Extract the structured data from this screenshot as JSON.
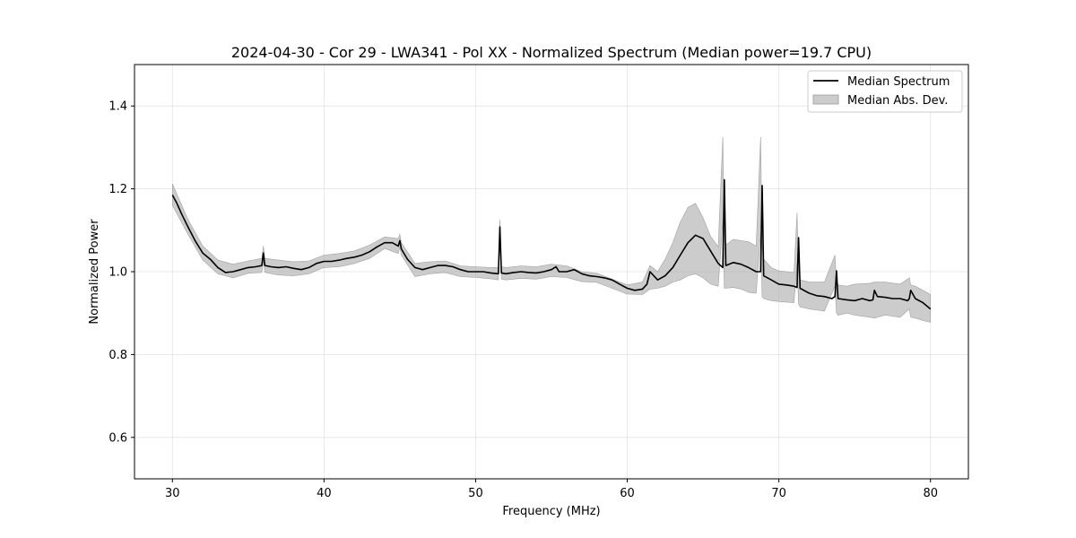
{
  "chart_data": {
    "type": "line",
    "title": "2024-04-30 - Cor 29 - LWA341 - Pol XX - Normalized Spectrum (Median power=19.7 CPU)",
    "xlabel": "Frequency (MHz)",
    "ylabel": "Normalized Power",
    "xlim": [
      27.5,
      82.5
    ],
    "ylim": [
      0.5,
      1.5
    ],
    "xticks": [
      30,
      40,
      50,
      60,
      70,
      80
    ],
    "xtick_labels": [
      "30",
      "40",
      "50",
      "60",
      "70",
      "80"
    ],
    "yticks": [
      0.6,
      0.8,
      1.0,
      1.2,
      1.4
    ],
    "ytick_labels": [
      "0.6",
      "0.8",
      "1.0",
      "1.2",
      "1.4"
    ],
    "grid": true,
    "legend_position": "top-right",
    "series": [
      {
        "name": "Median Spectrum",
        "color": "#000000",
        "x": [
          30.0,
          30.3,
          30.6,
          31.0,
          31.5,
          32.0,
          32.5,
          33.0,
          33.5,
          34.0,
          34.5,
          35.0,
          35.5,
          35.9,
          36.0,
          36.1,
          36.5,
          37.0,
          37.5,
          38.0,
          38.5,
          39.0,
          39.5,
          40.0,
          40.5,
          41.0,
          41.5,
          42.0,
          42.5,
          43.0,
          43.5,
          44.0,
          44.5,
          44.9,
          45.0,
          45.1,
          45.5,
          46.0,
          46.5,
          47.0,
          47.5,
          48.0,
          48.5,
          49.0,
          49.5,
          50.0,
          50.5,
          51.0,
          51.5,
          51.6,
          51.7,
          52.0,
          52.5,
          53.0,
          53.5,
          54.0,
          54.5,
          55.0,
          55.3,
          55.5,
          56.0,
          56.5,
          57.0,
          57.5,
          58.0,
          58.5,
          59.0,
          59.5,
          60.0,
          60.5,
          61.0,
          61.3,
          61.5,
          62.0,
          62.5,
          63.0,
          63.5,
          64.0,
          64.5,
          65.0,
          65.5,
          66.0,
          66.3,
          66.4,
          66.5,
          67.0,
          67.5,
          68.0,
          68.5,
          68.8,
          68.9,
          69.0,
          69.5,
          70.0,
          70.5,
          71.0,
          71.2,
          71.3,
          71.4,
          72.0,
          72.5,
          73.0,
          73.5,
          73.7,
          73.8,
          73.9,
          74.5,
          75.0,
          75.5,
          76.0,
          76.2,
          76.3,
          76.5,
          77.0,
          77.5,
          78.0,
          78.5,
          78.6,
          78.7,
          79.0,
          79.5,
          80.0
        ],
        "y": [
          1.185,
          1.165,
          1.14,
          1.11,
          1.075,
          1.045,
          1.03,
          1.01,
          0.998,
          1.0,
          1.005,
          1.01,
          1.012,
          1.015,
          1.045,
          1.015,
          1.012,
          1.01,
          1.012,
          1.008,
          1.005,
          1.01,
          1.02,
          1.025,
          1.025,
          1.028,
          1.032,
          1.035,
          1.04,
          1.048,
          1.06,
          1.07,
          1.07,
          1.062,
          1.075,
          1.055,
          1.03,
          1.01,
          1.005,
          1.01,
          1.015,
          1.015,
          1.012,
          1.005,
          1.0,
          1.0,
          1.0,
          0.997,
          0.995,
          1.108,
          0.997,
          0.995,
          0.998,
          1.0,
          0.998,
          0.997,
          1.0,
          1.005,
          1.012,
          1.0,
          1.0,
          1.005,
          0.995,
          0.99,
          0.988,
          0.985,
          0.98,
          0.97,
          0.96,
          0.955,
          0.958,
          0.97,
          1.0,
          0.98,
          0.99,
          1.01,
          1.04,
          1.07,
          1.088,
          1.08,
          1.05,
          1.02,
          1.01,
          1.222,
          1.015,
          1.022,
          1.018,
          1.01,
          1.0,
          1.0,
          1.208,
          0.99,
          0.98,
          0.97,
          0.968,
          0.965,
          0.962,
          1.082,
          0.96,
          0.948,
          0.942,
          0.94,
          0.935,
          0.94,
          1.002,
          0.935,
          0.932,
          0.93,
          0.935,
          0.93,
          0.932,
          0.955,
          0.94,
          0.938,
          0.935,
          0.935,
          0.93,
          0.935,
          0.955,
          0.935,
          0.925,
          0.91
        ]
      },
      {
        "name": "Median Abs. Dev.",
        "color": "#b0b0b0",
        "x": [
          30.0,
          31.0,
          32.0,
          33.0,
          34.0,
          35.0,
          35.9,
          36.0,
          36.1,
          37.0,
          38.0,
          39.0,
          40.0,
          41.0,
          42.0,
          43.0,
          44.0,
          44.9,
          45.0,
          45.1,
          46.0,
          47.0,
          48.0,
          49.0,
          50.0,
          51.0,
          51.5,
          51.6,
          51.7,
          52.0,
          53.0,
          54.0,
          55.0,
          56.0,
          57.0,
          58.0,
          59.0,
          60.0,
          61.0,
          61.5,
          62.0,
          62.5,
          63.0,
          63.5,
          64.0,
          64.5,
          65.0,
          65.5,
          66.0,
          66.3,
          66.4,
          66.5,
          67.0,
          67.5,
          68.0,
          68.5,
          68.8,
          68.9,
          69.0,
          69.5,
          70.0,
          71.0,
          71.2,
          71.3,
          71.4,
          72.0,
          73.0,
          73.7,
          73.8,
          73.9,
          74.5,
          75.0,
          76.0,
          76.3,
          77.0,
          78.0,
          78.6,
          78.7,
          79.0,
          79.5,
          80.0
        ],
        "upper": [
          1.212,
          1.128,
          1.062,
          1.028,
          1.018,
          1.026,
          1.032,
          1.062,
          1.032,
          1.028,
          1.024,
          1.026,
          1.04,
          1.044,
          1.05,
          1.064,
          1.084,
          1.08,
          1.09,
          1.07,
          1.02,
          1.024,
          1.026,
          1.014,
          1.012,
          1.01,
          1.01,
          1.126,
          1.012,
          1.01,
          1.014,
          1.012,
          1.018,
          1.014,
          1.0,
          0.996,
          0.982,
          0.968,
          0.975,
          1.015,
          1.0,
          1.03,
          1.07,
          1.12,
          1.155,
          1.165,
          1.13,
          1.085,
          1.06,
          1.325,
          1.07,
          1.065,
          1.078,
          1.075,
          1.072,
          1.062,
          1.325,
          1.06,
          1.03,
          1.01,
          1.002,
          0.998,
          1.142,
          1.0,
          0.98,
          0.975,
          0.975,
          1.04,
          0.975,
          0.968,
          0.965,
          0.97,
          0.972,
          0.975,
          0.975,
          0.97,
          0.985,
          0.968,
          0.965,
          0.955,
          0.945
        ],
        "lower": [
          1.16,
          1.092,
          1.028,
          0.995,
          0.985,
          0.996,
          0.998,
          1.028,
          0.998,
          0.992,
          0.99,
          0.995,
          1.01,
          1.012,
          1.02,
          1.032,
          1.056,
          1.044,
          1.06,
          1.04,
          0.988,
          0.995,
          0.998,
          0.988,
          0.986,
          0.983,
          0.98,
          1.09,
          0.982,
          0.98,
          0.984,
          0.982,
          0.988,
          0.986,
          0.976,
          0.974,
          0.96,
          0.946,
          0.945,
          0.958,
          0.96,
          0.965,
          0.975,
          0.98,
          0.99,
          0.995,
          0.985,
          0.97,
          0.965,
          1.12,
          0.96,
          0.96,
          0.962,
          0.958,
          0.95,
          0.948,
          1.09,
          0.94,
          0.935,
          0.93,
          0.928,
          0.925,
          1.02,
          0.922,
          0.915,
          0.91,
          0.905,
          0.965,
          0.9,
          0.895,
          0.9,
          0.895,
          0.89,
          0.888,
          0.895,
          0.89,
          0.91,
          0.89,
          0.888,
          0.882,
          0.878
        ]
      }
    ]
  }
}
